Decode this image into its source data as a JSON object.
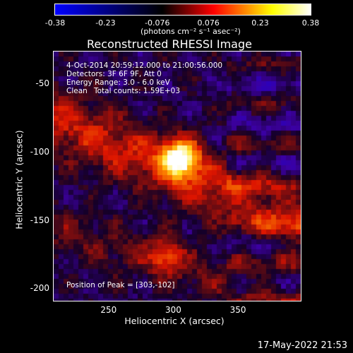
{
  "colorbar": {
    "ticks": [
      "-0.38",
      "-0.23",
      "-0.076",
      "0.076",
      "0.23",
      "0.38"
    ],
    "tick_values": [
      -0.38,
      -0.23,
      -0.076,
      0.076,
      0.23,
      0.38
    ],
    "units": "(photons cm⁻² s⁻¹ asec⁻²)",
    "colors": [
      "#0000ff",
      "#000000",
      "#ff0000",
      "#ffff00",
      "#ffffff"
    ]
  },
  "chart_data": {
    "type": "heatmap",
    "title": "Reconstructed RHESSI Image",
    "xlabel": "Heliocentric X (arcsec)",
    "ylabel": "Heliocentric Y (arcsec)",
    "xlim": [
      207,
      398
    ],
    "ylim": [
      -208,
      -26
    ],
    "xticks": [
      "250",
      "300",
      "350"
    ],
    "xtick_values": [
      250,
      300,
      350
    ],
    "yticks": [
      "-50",
      "-100",
      "-150",
      "-200"
    ],
    "ytick_values": [
      -50,
      -100,
      -150,
      -200
    ],
    "peak": [
      303,
      -102
    ],
    "annotations": {
      "time": "4-Oct-2014 20:59:12.000 to 21:00:56.000",
      "detectors": "Detectors: 3F 6F 9F, Att 0",
      "energy": "Energy Range: 3.0 - 6.0 keV",
      "clean": "Clean",
      "counts": "Total counts: 1.59E+03",
      "peak_label": "Position of Peak = [303,-102]"
    }
  },
  "footer": {
    "date": "17-May-2022 21:53"
  }
}
